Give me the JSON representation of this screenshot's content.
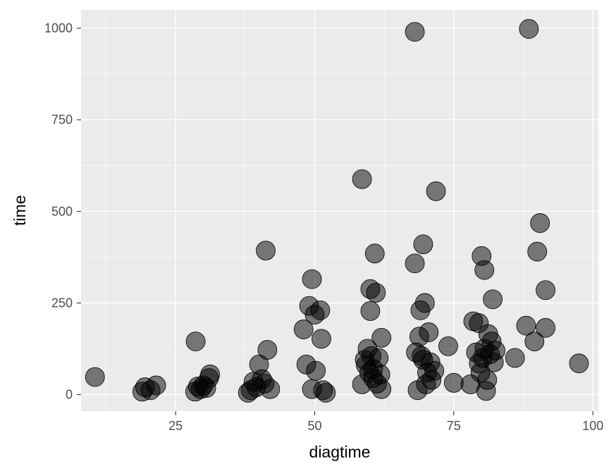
{
  "chart_data": {
    "type": "scatter",
    "xlabel": "diagtime",
    "ylabel": "time",
    "xlim": [
      8,
      101
    ],
    "ylim": [
      -45,
      1050
    ],
    "x_ticks": [
      25,
      50,
      75,
      100
    ],
    "y_ticks": [
      0,
      250,
      500,
      750,
      1000
    ],
    "x_minor": [
      12.5,
      37.5,
      62.5,
      87.5
    ],
    "y_minor": [
      125,
      375,
      625,
      875
    ],
    "grid": true,
    "point_color": "#000000",
    "point_alpha": 0.5,
    "points": [
      {
        "x": 10.5,
        "y": 48
      },
      {
        "x": 19,
        "y": 8
      },
      {
        "x": 19.5,
        "y": 20
      },
      {
        "x": 20.5,
        "y": 12
      },
      {
        "x": 21.5,
        "y": 25
      },
      {
        "x": 28.5,
        "y": 8
      },
      {
        "x": 28.6,
        "y": 145
      },
      {
        "x": 29,
        "y": 22
      },
      {
        "x": 29.5,
        "y": 15
      },
      {
        "x": 30,
        "y": 25
      },
      {
        "x": 30.5,
        "y": 18
      },
      {
        "x": 31,
        "y": 45
      },
      {
        "x": 31.2,
        "y": 55
      },
      {
        "x": 38,
        "y": 5
      },
      {
        "x": 38.5,
        "y": 12
      },
      {
        "x": 39,
        "y": 35
      },
      {
        "x": 39.5,
        "y": 20
      },
      {
        "x": 40,
        "y": 82
      },
      {
        "x": 40.5,
        "y": 42
      },
      {
        "x": 41,
        "y": 30
      },
      {
        "x": 41.2,
        "y": 393
      },
      {
        "x": 41.5,
        "y": 122
      },
      {
        "x": 42,
        "y": 15
      },
      {
        "x": 48,
        "y": 178
      },
      {
        "x": 48.5,
        "y": 82
      },
      {
        "x": 49,
        "y": 242
      },
      {
        "x": 49.5,
        "y": 315
      },
      {
        "x": 49.5,
        "y": 15
      },
      {
        "x": 50,
        "y": 218
      },
      {
        "x": 50.2,
        "y": 65
      },
      {
        "x": 51,
        "y": 230
      },
      {
        "x": 51.2,
        "y": 152
      },
      {
        "x": 51.5,
        "y": 12
      },
      {
        "x": 52,
        "y": 5
      },
      {
        "x": 58.5,
        "y": 588
      },
      {
        "x": 58.5,
        "y": 28
      },
      {
        "x": 59,
        "y": 95
      },
      {
        "x": 59.2,
        "y": 80
      },
      {
        "x": 59.5,
        "y": 125
      },
      {
        "x": 59.8,
        "y": 60
      },
      {
        "x": 60,
        "y": 228
      },
      {
        "x": 60,
        "y": 288
      },
      {
        "x": 60.2,
        "y": 105
      },
      {
        "x": 60.5,
        "y": 45
      },
      {
        "x": 60.5,
        "y": 70
      },
      {
        "x": 60.8,
        "y": 385
      },
      {
        "x": 61,
        "y": 278
      },
      {
        "x": 61.2,
        "y": 30
      },
      {
        "x": 61.5,
        "y": 100
      },
      {
        "x": 61.8,
        "y": 55
      },
      {
        "x": 62,
        "y": 155
      },
      {
        "x": 62,
        "y": 15
      },
      {
        "x": 68,
        "y": 990
      },
      {
        "x": 68,
        "y": 358
      },
      {
        "x": 68.2,
        "y": 115
      },
      {
        "x": 68.5,
        "y": 12
      },
      {
        "x": 68.8,
        "y": 158
      },
      {
        "x": 69,
        "y": 230
      },
      {
        "x": 69.2,
        "y": 105
      },
      {
        "x": 69.5,
        "y": 410
      },
      {
        "x": 69.5,
        "y": 95
      },
      {
        "x": 69.8,
        "y": 250
      },
      {
        "x": 70,
        "y": 28
      },
      {
        "x": 70.2,
        "y": 60
      },
      {
        "x": 70.5,
        "y": 170
      },
      {
        "x": 70.8,
        "y": 88
      },
      {
        "x": 71,
        "y": 40
      },
      {
        "x": 71.5,
        "y": 65
      },
      {
        "x": 71.8,
        "y": 555
      },
      {
        "x": 74,
        "y": 132
      },
      {
        "x": 75,
        "y": 32
      },
      {
        "x": 78,
        "y": 28
      },
      {
        "x": 78.5,
        "y": 200
      },
      {
        "x": 79,
        "y": 115
      },
      {
        "x": 79.5,
        "y": 195
      },
      {
        "x": 79.5,
        "y": 85
      },
      {
        "x": 79.8,
        "y": 60
      },
      {
        "x": 80,
        "y": 378
      },
      {
        "x": 80.2,
        "y": 100
      },
      {
        "x": 80.5,
        "y": 340
      },
      {
        "x": 80.5,
        "y": 125
      },
      {
        "x": 80.8,
        "y": 10
      },
      {
        "x": 81,
        "y": 40
      },
      {
        "x": 81.2,
        "y": 165
      },
      {
        "x": 81.5,
        "y": 110
      },
      {
        "x": 81.8,
        "y": 145
      },
      {
        "x": 82,
        "y": 260
      },
      {
        "x": 82.2,
        "y": 88
      },
      {
        "x": 82.5,
        "y": 120
      },
      {
        "x": 86,
        "y": 100
      },
      {
        "x": 88,
        "y": 188
      },
      {
        "x": 88.5,
        "y": 998
      },
      {
        "x": 89.5,
        "y": 145
      },
      {
        "x": 90,
        "y": 390
      },
      {
        "x": 90.5,
        "y": 468
      },
      {
        "x": 91.5,
        "y": 285
      },
      {
        "x": 91.5,
        "y": 182
      },
      {
        "x": 97.5,
        "y": 85
      }
    ]
  }
}
